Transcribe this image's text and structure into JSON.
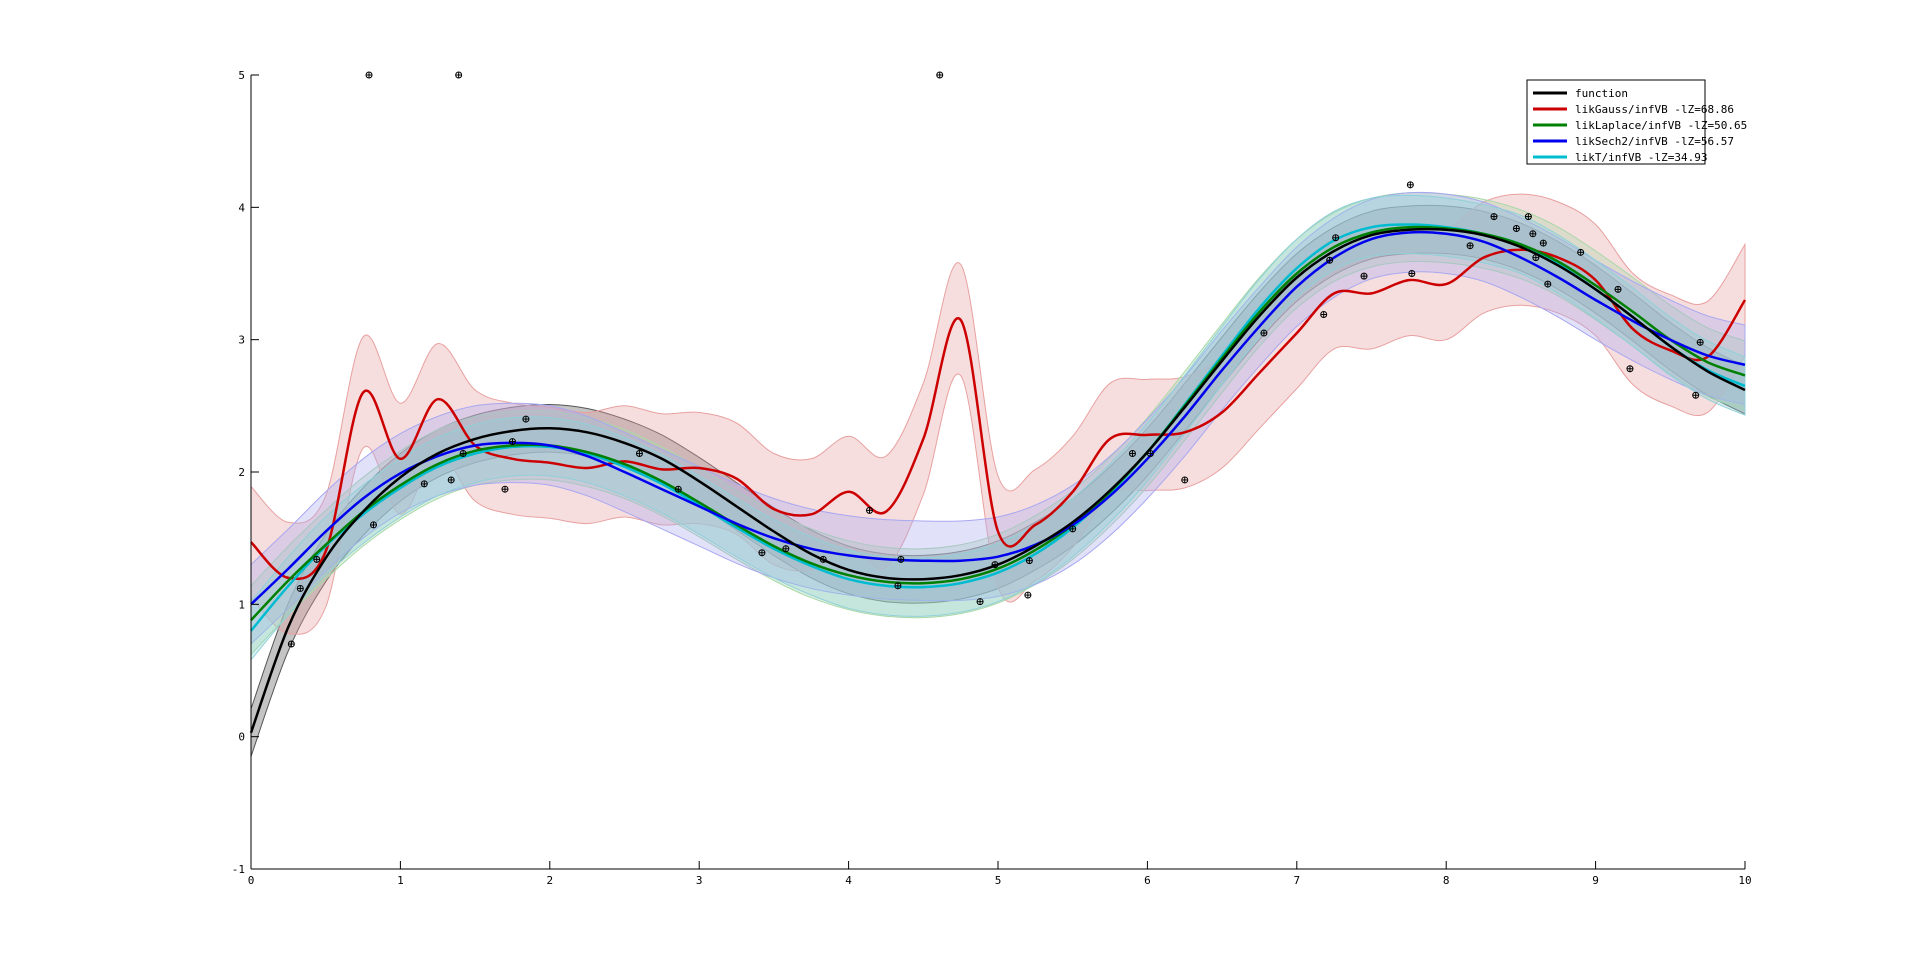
{
  "chart_data": {
    "type": "line",
    "title": "",
    "xlabel": "",
    "ylabel": "",
    "xlim": [
      0,
      10
    ],
    "ylim": [
      -1,
      5
    ],
    "xticks": [
      "0",
      "1",
      "2",
      "3",
      "4",
      "5",
      "6",
      "7",
      "8",
      "9",
      "10"
    ],
    "yticks": [
      "-1",
      "0",
      "1",
      "2",
      "3",
      "4",
      "5"
    ],
    "grid": false,
    "legend_position": "top-right",
    "x": [
      0,
      0.25,
      0.5,
      0.75,
      1,
      1.25,
      1.5,
      1.75,
      2,
      2.25,
      2.5,
      2.75,
      3,
      3.25,
      3.5,
      3.75,
      4,
      4.25,
      4.5,
      4.75,
      5,
      5.25,
      5.5,
      5.75,
      6,
      6.25,
      6.5,
      6.75,
      7,
      7.25,
      7.5,
      7.75,
      8,
      8.25,
      8.5,
      8.75,
      9,
      9.25,
      9.5,
      9.75,
      10
    ],
    "series": [
      {
        "name": "function",
        "color": "#000000",
        "mean": [
          0.03,
          0.83,
          1.35,
          1.7,
          1.96,
          2.14,
          2.25,
          2.31,
          2.33,
          2.3,
          2.22,
          2.1,
          1.93,
          1.74,
          1.55,
          1.38,
          1.26,
          1.2,
          1.19,
          1.22,
          1.3,
          1.44,
          1.62,
          1.86,
          2.15,
          2.49,
          2.84,
          3.18,
          3.47,
          3.67,
          3.79,
          3.83,
          3.83,
          3.79,
          3.7,
          3.56,
          3.38,
          3.17,
          2.95,
          2.76,
          2.62
        ],
        "band_half_width": 0.18,
        "band_color": "#555555"
      },
      {
        "name": "likGauss/infVB -lZ=68.86",
        "color": "#cc0000",
        "mean": [
          1.47,
          1.2,
          1.4,
          2.6,
          2.1,
          2.55,
          2.2,
          2.1,
          2.07,
          2.03,
          2.08,
          2.02,
          2.03,
          1.95,
          1.72,
          1.68,
          1.85,
          1.7,
          2.25,
          3.15,
          1.55,
          1.6,
          1.85,
          2.25,
          2.28,
          2.3,
          2.45,
          2.75,
          3.05,
          3.35,
          3.35,
          3.45,
          3.42,
          3.62,
          3.68,
          3.62,
          3.45,
          3.08,
          2.92,
          2.87,
          3.3
        ],
        "band_half_width": 0.42,
        "band_color": "#e8a0a0"
      },
      {
        "name": "likLaplace/infVB -lZ=50.65",
        "color": "#008000",
        "mean": [
          0.88,
          1.18,
          1.45,
          1.7,
          1.9,
          2.06,
          2.16,
          2.2,
          2.2,
          2.15,
          2.06,
          1.93,
          1.77,
          1.6,
          1.44,
          1.31,
          1.22,
          1.17,
          1.16,
          1.19,
          1.27,
          1.41,
          1.6,
          1.85,
          2.15,
          2.5,
          2.86,
          3.21,
          3.5,
          3.7,
          3.81,
          3.85,
          3.84,
          3.8,
          3.72,
          3.59,
          3.41,
          3.21,
          3.0,
          2.83,
          2.73
        ],
        "band_half_width": 0.26,
        "band_color": "#a8d8a8"
      },
      {
        "name": "likSech2/infVB -lZ=56.57",
        "color": "#0000ee",
        "mean": [
          1.0,
          1.27,
          1.55,
          1.8,
          1.99,
          2.12,
          2.2,
          2.22,
          2.2,
          2.12,
          2.0,
          1.87,
          1.74,
          1.61,
          1.5,
          1.42,
          1.37,
          1.34,
          1.33,
          1.33,
          1.36,
          1.45,
          1.6,
          1.82,
          2.1,
          2.42,
          2.77,
          3.1,
          3.4,
          3.62,
          3.76,
          3.81,
          3.8,
          3.74,
          3.62,
          3.47,
          3.3,
          3.14,
          3.0,
          2.88,
          2.81
        ],
        "band_half_width": 0.3,
        "band_color": "#a8a8f0"
      },
      {
        "name": "likT/infVB -lZ=34.93",
        "color": "#00bcd0",
        "mean": [
          0.8,
          1.14,
          1.44,
          1.68,
          1.88,
          2.04,
          2.14,
          2.19,
          2.19,
          2.14,
          2.04,
          1.91,
          1.75,
          1.58,
          1.42,
          1.29,
          1.19,
          1.14,
          1.13,
          1.16,
          1.24,
          1.38,
          1.58,
          1.84,
          2.15,
          2.51,
          2.88,
          3.24,
          3.54,
          3.75,
          3.85,
          3.87,
          3.85,
          3.8,
          3.72,
          3.57,
          3.38,
          3.17,
          2.95,
          2.77,
          2.65
        ],
        "band_half_width": 0.22,
        "band_color": "#90d0d8"
      }
    ],
    "observations": [
      [
        0.27,
        0.7
      ],
      [
        0.33,
        1.12
      ],
      [
        0.44,
        1.34
      ],
      [
        0.79,
        5.0
      ],
      [
        0.82,
        1.6
      ],
      [
        1.16,
        1.91
      ],
      [
        1.34,
        1.94
      ],
      [
        1.39,
        5.0
      ],
      [
        1.42,
        2.14
      ],
      [
        1.7,
        1.87
      ],
      [
        1.75,
        2.23
      ],
      [
        1.84,
        2.4
      ],
      [
        2.6,
        2.14
      ],
      [
        2.86,
        1.87
      ],
      [
        3.42,
        1.39
      ],
      [
        3.58,
        1.42
      ],
      [
        3.83,
        1.34
      ],
      [
        4.14,
        1.71
      ],
      [
        4.33,
        1.14
      ],
      [
        4.35,
        1.34
      ],
      [
        4.61,
        5.0
      ],
      [
        4.88,
        1.02
      ],
      [
        4.98,
        1.3
      ],
      [
        5.2,
        1.07
      ],
      [
        5.21,
        1.33
      ],
      [
        5.5,
        1.57
      ],
      [
        5.9,
        2.14
      ],
      [
        6.02,
        2.14
      ],
      [
        6.25,
        1.94
      ],
      [
        6.78,
        3.05
      ],
      [
        7.18,
        3.19
      ],
      [
        7.22,
        3.6
      ],
      [
        7.26,
        3.77
      ],
      [
        7.45,
        3.48
      ],
      [
        7.76,
        4.17
      ],
      [
        7.77,
        3.5
      ],
      [
        8.16,
        3.71
      ],
      [
        8.32,
        3.93
      ],
      [
        8.47,
        3.84
      ],
      [
        8.55,
        3.93
      ],
      [
        8.58,
        3.8
      ],
      [
        8.6,
        3.62
      ],
      [
        8.65,
        3.73
      ],
      [
        8.68,
        3.42
      ],
      [
        8.9,
        3.66
      ],
      [
        9.15,
        3.38
      ],
      [
        9.23,
        2.78
      ],
      [
        9.67,
        2.58
      ],
      [
        9.7,
        2.98
      ]
    ]
  }
}
